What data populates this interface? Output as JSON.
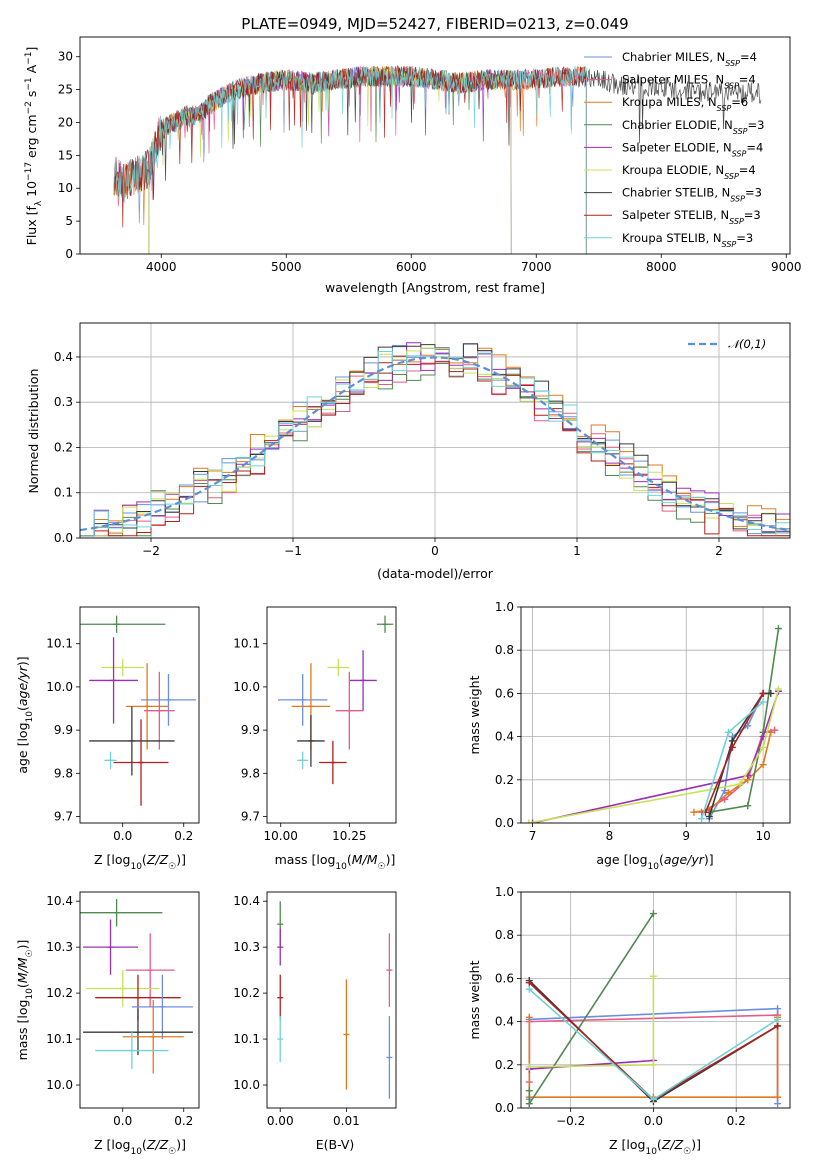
{
  "figure": {
    "title": "PLATE=0949, MJD=52427, FIBERID=0213, z=0.049"
  },
  "chart_data": [
    {
      "id": "spectrum",
      "type": "line",
      "xlabel": "wavelength [Angstrom, rest frame]",
      "ylabel": "Flux [f_λ 10^-17 erg cm^-2 s^-1 A^-1]",
      "xlim": [
        3350,
        9030
      ],
      "ylim": [
        0,
        33
      ],
      "xticks": [
        4000,
        5000,
        6000,
        7000,
        8000,
        9000
      ],
      "xtick_labels": [
        "4000",
        "5000",
        "6000",
        "7000",
        "8000",
        "9000"
      ],
      "yticks": [
        0,
        5,
        10,
        15,
        20,
        25,
        30
      ],
      "ytick_labels": [
        "0",
        "5",
        "10",
        "15",
        "20",
        "25",
        "30"
      ],
      "legend_position": "upper-right",
      "series": [
        {
          "name": "Chabrier MILES, N_SSP=4",
          "color": "#6b8fde",
          "x_range": [
            3620,
            7400
          ]
        },
        {
          "name": "Salpeter MILES, N_SSP=4",
          "color": "#e75b8c",
          "x_range": [
            3620,
            7400
          ]
        },
        {
          "name": "Kroupa MILES, N_SSP=6",
          "color": "#e07a1f",
          "x_range": [
            3620,
            7400
          ]
        },
        {
          "name": "Chabrier ELODIE, N_SSP=3",
          "color": "#4f8a4f",
          "x_range": [
            3900,
            6800
          ]
        },
        {
          "name": "Salpeter ELODIE, N_SSP=4",
          "color": "#9a2fb5",
          "x_range": [
            3900,
            6800
          ]
        },
        {
          "name": "Kroupa ELODIE, N_SSP=4",
          "color": "#c8e05a",
          "x_range": [
            3900,
            6800
          ]
        },
        {
          "name": "Chabrier STELIB, N_SSP=3",
          "color": "#3a3a3a",
          "x_range": [
            3620,
            8800
          ]
        },
        {
          "name": "Salpeter STELIB, N_SSP=3",
          "color": "#b0201c",
          "x_range": [
            3620,
            7400
          ]
        },
        {
          "name": "Kroupa STELIB, N_SSP=3",
          "color": "#6fd3d6",
          "x_range": [
            3620,
            7400
          ]
        }
      ],
      "spectrum_shape": {
        "x": [
          3620,
          3700,
          3800,
          3900,
          4000,
          4100,
          4200,
          4300,
          4400,
          4600,
          4800,
          5000,
          5200,
          5400,
          5600,
          5800,
          6000,
          6200,
          6400,
          6600,
          6800,
          7000,
          7200,
          7400,
          7600,
          7800,
          8000,
          8200,
          8400,
          8600,
          8800
        ],
        "y": [
          12,
          11,
          12,
          13,
          19,
          20,
          21,
          21,
          23,
          25,
          26,
          26.5,
          26,
          26.5,
          27,
          27,
          27,
          26.5,
          26,
          26.5,
          26.5,
          26.5,
          27,
          27,
          26,
          25.5,
          25.5,
          25,
          24.5,
          24.5,
          24.5
        ]
      }
    },
    {
      "id": "residuals",
      "type": "histogram",
      "xlabel": "(data-model)/error",
      "ylabel": "Normed distribution",
      "xlim": [
        -2.5,
        2.5
      ],
      "ylim": [
        0,
        0.475
      ],
      "xticks": [
        -2,
        -1,
        0,
        1,
        2
      ],
      "xtick_labels": [
        "−2",
        "−1",
        "0",
        "1",
        "2"
      ],
      "yticks": [
        0,
        0.1,
        0.2,
        0.3,
        0.4
      ],
      "ytick_labels": [
        "0.0",
        "0.1",
        "0.2",
        "0.3",
        "0.4"
      ],
      "grid": true,
      "legend_position": "upper-right",
      "reference_curve": {
        "name": "𝒩(0,1)",
        "color": "#5b8fdb",
        "mean": 0,
        "sigma": 1
      },
      "bins": [
        -2.5,
        -2.4,
        -2.3,
        -2.2,
        -2.1,
        -2.0,
        -1.9,
        -1.8,
        -1.7,
        -1.6,
        -1.5,
        -1.4,
        -1.3,
        -1.2,
        -1.1,
        -1.0,
        -0.9,
        -0.8,
        -0.7,
        -0.6,
        -0.5,
        -0.4,
        -0.3,
        -0.2,
        -0.1,
        0.0,
        0.1,
        0.2,
        0.3,
        0.4,
        0.5,
        0.6,
        0.7,
        0.8,
        0.9,
        1.0,
        1.1,
        1.2,
        1.3,
        1.4,
        1.5,
        1.6,
        1.7,
        1.8,
        1.9,
        2.0,
        2.1,
        2.2,
        2.3,
        2.4,
        2.5
      ],
      "series_offsets": [
        0.012,
        -0.01,
        0.018,
        -0.015,
        0.006,
        -0.004,
        0.014,
        -0.018,
        0.009
      ]
    },
    {
      "id": "age-vs-Z",
      "type": "errorbar",
      "xlabel": "Z [log10(Z/Z☉)]",
      "ylabel": "age [log10(age/yr)]",
      "xlim": [
        -0.14,
        0.25
      ],
      "ylim": [
        9.685,
        10.185
      ],
      "xticks": [
        0.0,
        0.2
      ],
      "xtick_labels": [
        "0.0",
        "0.2"
      ],
      "yticks": [
        9.7,
        9.8,
        9.9,
        10.0,
        10.1
      ],
      "ytick_labels": [
        "9.7",
        "9.8",
        "9.9",
        "10.0",
        "10.1"
      ],
      "points": [
        {
          "x": -0.02,
          "xerr": 0.16,
          "y": 10.145,
          "yerr": 0.02,
          "color": "#4f8a4f"
        },
        {
          "x": 0.0,
          "xerr": 0.07,
          "y": 10.045,
          "yerr": 0.02,
          "color": "#c8e05a"
        },
        {
          "x": -0.03,
          "xerr": 0.08,
          "y": 10.015,
          "yerr": 0.1,
          "color": "#9a2fb5"
        },
        {
          "x": 0.15,
          "xerr": 0.09,
          "y": 9.97,
          "yerr": 0.06,
          "color": "#6b8fde"
        },
        {
          "x": 0.08,
          "xerr": 0.07,
          "y": 9.955,
          "yerr": 0.1,
          "color": "#e07a1f"
        },
        {
          "x": 0.12,
          "xerr": 0.05,
          "y": 9.945,
          "yerr": 0.09,
          "color": "#e75b8c"
        },
        {
          "x": 0.03,
          "xerr": 0.14,
          "y": 9.875,
          "yerr": 0.08,
          "color": "#3a3a3a"
        },
        {
          "x": -0.04,
          "xerr": 0.02,
          "y": 9.83,
          "yerr": 0.02,
          "color": "#6fd3d6"
        },
        {
          "x": 0.06,
          "xerr": 0.09,
          "y": 9.825,
          "yerr": 0.1,
          "color": "#b0201c"
        }
      ]
    },
    {
      "id": "age-vs-mass",
      "type": "errorbar",
      "xlabel": "mass [log10(M/M☉)]",
      "xlim": [
        9.95,
        10.42
      ],
      "ylim": [
        9.685,
        10.185
      ],
      "xticks": [
        10.0,
        10.25
      ],
      "xtick_labels": [
        "10.00",
        "10.25"
      ],
      "yticks": [
        9.7,
        9.8,
        9.9,
        10.0,
        10.1
      ],
      "ytick_labels": [
        "9.7",
        "9.8",
        "9.9",
        "10.0",
        "10.1"
      ],
      "points": [
        {
          "x": 10.38,
          "xerr": 0.03,
          "y": 10.145,
          "yerr": 0.02,
          "color": "#4f8a4f"
        },
        {
          "x": 10.21,
          "xerr": 0.04,
          "y": 10.045,
          "yerr": 0.02,
          "color": "#c8e05a"
        },
        {
          "x": 10.3,
          "xerr": 0.05,
          "y": 10.015,
          "yerr": 0.07,
          "color": "#9a2fb5"
        },
        {
          "x": 10.08,
          "xerr": 0.09,
          "y": 9.97,
          "yerr": 0.06,
          "color": "#6b8fde"
        },
        {
          "x": 10.11,
          "xerr": 0.07,
          "y": 9.955,
          "yerr": 0.1,
          "color": "#e07a1f"
        },
        {
          "x": 10.25,
          "xerr": 0.05,
          "y": 9.945,
          "yerr": 0.09,
          "color": "#e75b8c"
        },
        {
          "x": 10.11,
          "xerr": 0.05,
          "y": 9.875,
          "yerr": 0.06,
          "color": "#3a3a3a"
        },
        {
          "x": 10.08,
          "xerr": 0.02,
          "y": 9.83,
          "yerr": 0.02,
          "color": "#6fd3d6"
        },
        {
          "x": 10.19,
          "xerr": 0.05,
          "y": 9.825,
          "yerr": 0.05,
          "color": "#b0201c"
        }
      ]
    },
    {
      "id": "weight-vs-age",
      "type": "line",
      "xlabel": "age [log10(age/yr)]",
      "ylabel": "mass weight",
      "xlim": [
        6.85,
        10.35
      ],
      "ylim": [
        0,
        1.0
      ],
      "xticks": [
        7,
        8,
        9,
        10
      ],
      "xtick_labels": [
        "7",
        "8",
        "9",
        "10"
      ],
      "yticks": [
        0,
        0.2,
        0.4,
        0.6,
        0.8,
        1.0
      ],
      "ytick_labels": [
        "0.0",
        "0.2",
        "0.4",
        "0.6",
        "0.8",
        "1.0"
      ],
      "grid": true,
      "series": [
        {
          "color": "#6b8fde",
          "x": [
            9.3,
            9.5,
            9.6,
            9.8,
            10.0
          ],
          "y": [
            0.02,
            0.15,
            0.4,
            0.45,
            0.6
          ]
        },
        {
          "color": "#e75b8c",
          "x": [
            9.2,
            9.5,
            9.8,
            10.0,
            10.15
          ],
          "y": [
            0.05,
            0.11,
            0.2,
            0.42,
            0.43
          ]
        },
        {
          "color": "#e07a1f",
          "x": [
            9.1,
            9.3,
            9.55,
            9.8,
            10.0,
            10.1
          ],
          "y": [
            0.05,
            0.06,
            0.14,
            0.2,
            0.27,
            0.42
          ]
        },
        {
          "color": "#4f8a4f",
          "x": [
            9.3,
            9.8,
            10.0,
            10.2
          ],
          "y": [
            0.05,
            0.08,
            0.42,
            0.9
          ]
        },
        {
          "color": "#9a2fb5",
          "x": [
            7.0,
            9.8,
            10.0,
            10.2
          ],
          "y": [
            0.0,
            0.22,
            0.4,
            0.61
          ]
        },
        {
          "color": "#c8e05a",
          "x": [
            6.95,
            9.7,
            10.0,
            10.2
          ],
          "y": [
            0.0,
            0.18,
            0.35,
            0.62
          ]
        },
        {
          "color": "#3a3a3a",
          "x": [
            9.3,
            9.6,
            10.0,
            10.1
          ],
          "y": [
            0.03,
            0.38,
            0.6,
            0.6
          ]
        },
        {
          "color": "#b0201c",
          "x": [
            9.25,
            9.6,
            10.0
          ],
          "y": [
            0.05,
            0.35,
            0.6
          ]
        },
        {
          "color": "#6fd3d6",
          "x": [
            9.2,
            9.55,
            10.0
          ],
          "y": [
            0.02,
            0.42,
            0.56
          ]
        }
      ]
    },
    {
      "id": "mass-vs-Z",
      "type": "errorbar",
      "xlabel": "Z [log10(Z/Z☉)]",
      "ylabel": "mass [log10(M/M☉)]",
      "xlim": [
        -0.14,
        0.25
      ],
      "ylim": [
        9.95,
        10.42
      ],
      "xticks": [
        0.0,
        0.2
      ],
      "xtick_labels": [
        "0.0",
        "0.2"
      ],
      "yticks": [
        10.0,
        10.1,
        10.2,
        10.3,
        10.4
      ],
      "ytick_labels": [
        "10.0",
        "10.1",
        "10.2",
        "10.3",
        "10.4"
      ],
      "points": [
        {
          "x": -0.02,
          "xerr": 0.15,
          "y": 10.375,
          "yerr": 0.03,
          "color": "#4f8a4f"
        },
        {
          "x": -0.04,
          "xerr": 0.09,
          "y": 10.3,
          "yerr": 0.06,
          "color": "#9a2fb5"
        },
        {
          "x": 0.09,
          "xerr": 0.08,
          "y": 10.25,
          "yerr": 0.08,
          "color": "#e75b8c"
        },
        {
          "x": 0.0,
          "xerr": 0.12,
          "y": 10.21,
          "yerr": 0.04,
          "color": "#c8e05a"
        },
        {
          "x": 0.05,
          "xerr": 0.14,
          "y": 10.19,
          "yerr": 0.05,
          "color": "#b0201c"
        },
        {
          "x": 0.13,
          "xerr": 0.1,
          "y": 10.17,
          "yerr": 0.07,
          "color": "#6b8fde"
        },
        {
          "x": 0.05,
          "xerr": 0.18,
          "y": 10.115,
          "yerr": 0.05,
          "color": "#3a3a3a"
        },
        {
          "x": 0.1,
          "xerr": 0.1,
          "y": 10.105,
          "yerr": 0.08,
          "color": "#e07a1f"
        },
        {
          "x": 0.03,
          "xerr": 0.12,
          "y": 10.075,
          "yerr": 0.04,
          "color": "#6fd3d6"
        }
      ]
    },
    {
      "id": "mass-vs-EBV",
      "type": "errorbar",
      "xlabel": "E(B-V)",
      "xlim": [
        -0.002,
        0.0175
      ],
      "ylim": [
        9.95,
        10.42
      ],
      "xticks": [
        0.0,
        0.01
      ],
      "xtick_labels": [
        "0.00",
        "0.01"
      ],
      "yticks": [
        10.0,
        10.1,
        10.2,
        10.3,
        10.4
      ],
      "ytick_labels": [
        "10.0",
        "10.1",
        "10.2",
        "10.3",
        "10.4"
      ],
      "points": [
        {
          "x": 0.0,
          "y": 10.35,
          "yerr": 0.05,
          "color": "#4f8a4f"
        },
        {
          "x": 0.0,
          "y": 10.3,
          "yerr": 0.04,
          "color": "#9a2fb5"
        },
        {
          "x": 0.0,
          "y": 10.19,
          "yerr": 0.05,
          "color": "#b0201c"
        },
        {
          "x": 0.0,
          "y": 10.1,
          "yerr": 0.05,
          "color": "#6fd3d6"
        },
        {
          "x": 0.01,
          "y": 10.11,
          "yerr": 0.12,
          "color": "#e07a1f"
        },
        {
          "x": 0.0165,
          "y": 10.25,
          "yerr": 0.08,
          "color": "#e75b8c"
        },
        {
          "x": 0.0165,
          "y": 10.06,
          "yerr": 0.09,
          "color": "#6b8fde"
        }
      ]
    },
    {
      "id": "weight-vs-Z",
      "type": "line",
      "xlabel": "Z [log10(Z/Z☉)]",
      "ylabel": "mass weight",
      "xlim": [
        -0.32,
        0.33
      ],
      "ylim": [
        0,
        1.0
      ],
      "xticks": [
        -0.2,
        0.0,
        0.2
      ],
      "xtick_labels": [
        "−0.2",
        "0.0",
        "0.2"
      ],
      "yticks": [
        0,
        0.2,
        0.4,
        0.6,
        0.8,
        1.0
      ],
      "ytick_labels": [
        "0.0",
        "0.2",
        "0.4",
        "0.6",
        "0.8",
        "1.0"
      ],
      "grid": true,
      "series": [
        {
          "color": "#6b8fde",
          "x": [
            -0.3,
            -0.3,
            0.3,
            0.3
          ],
          "y": [
            0.04,
            0.41,
            0.46,
            0.02
          ]
        },
        {
          "color": "#e75b8c",
          "x": [
            -0.3,
            -0.3,
            0.3,
            0.3
          ],
          "y": [
            0.12,
            0.4,
            0.43,
            0.05
          ]
        },
        {
          "color": "#e07a1f",
          "x": [
            -0.3,
            -0.3,
            0.0,
            0.3,
            0.3
          ],
          "y": [
            0.42,
            0.05,
            0.05,
            0.05,
            0.42
          ]
        },
        {
          "color": "#4f8a4f",
          "x": [
            -0.3,
            -0.3,
            0.0
          ],
          "y": [
            0.08,
            0.02,
            0.9
          ]
        },
        {
          "color": "#9a2fb5",
          "x": [
            -0.3,
            0.0
          ],
          "y": [
            0.18,
            0.22
          ]
        },
        {
          "color": "#c8e05a",
          "x": [
            -0.3,
            0.0,
            0.0
          ],
          "y": [
            0.19,
            0.2,
            0.61
          ]
        },
        {
          "color": "#3a3a3a",
          "x": [
            -0.3,
            0.0,
            0.3
          ],
          "y": [
            0.59,
            0.03,
            0.38
          ]
        },
        {
          "color": "#b0201c",
          "x": [
            -0.3,
            0.0,
            0.3
          ],
          "y": [
            0.58,
            0.04,
            0.38
          ]
        },
        {
          "color": "#6fd3d6",
          "x": [
            -0.3,
            0.0,
            0.3
          ],
          "y": [
            0.55,
            0.04,
            0.41
          ]
        }
      ]
    }
  ]
}
